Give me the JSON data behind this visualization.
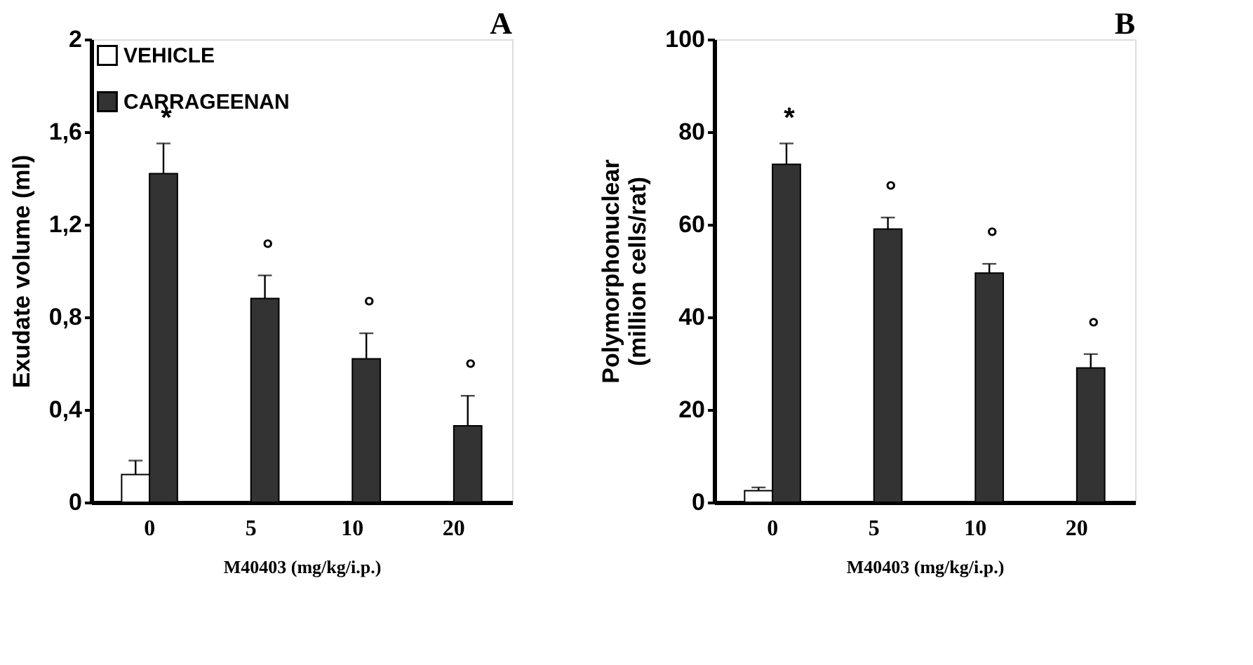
{
  "chart_data": [
    {
      "type": "bar",
      "title": "A",
      "xlabel": "M40403    (mg/kg/i.p.)",
      "ylabel": "Exudate volume (ml)",
      "categories": [
        "0",
        "5",
        "10",
        "20"
      ],
      "series": [
        {
          "name": "VEHICLE",
          "color": "#ffffff",
          "values": [
            0.12,
            null,
            null,
            null
          ],
          "errors": [
            [
              0.12,
              0.18
            ],
            null,
            null,
            null
          ]
        },
        {
          "name": "CARRAGEENAN",
          "color": "#333333",
          "values": [
            1.42,
            0.88,
            0.62,
            0.33
          ],
          "errors": [
            [
              1.42,
              1.55
            ],
            [
              0.88,
              0.98
            ],
            [
              0.62,
              0.73
            ],
            [
              0.33,
              0.46
            ]
          ]
        }
      ],
      "ylim": [
        0,
        2
      ],
      "yticks": [
        0,
        {
          "value": 0.4,
          "label": "0,4"
        },
        {
          "value": 0.8,
          "label": "0,8"
        },
        {
          "value": 1.2,
          "label": "1,2"
        },
        {
          "value": 1.6,
          "label": "1,6"
        },
        2
      ],
      "legend": "top left",
      "grid": false,
      "annotations": [
        "*",
        "°",
        "°",
        "°"
      ]
    },
    {
      "type": "bar",
      "title": "B",
      "xlabel": "M40403    (mg/kg/i.p.)",
      "ylabel": "Polymorphonuclear\n(million cells/rat)",
      "categories": [
        "0",
        "5",
        "10",
        "20"
      ],
      "series": [
        {
          "color": "#ffffff",
          "values": [
            2.5,
            null,
            null,
            null
          ],
          "errors": [
            [
              2.5,
              3.2
            ],
            null,
            null,
            null
          ]
        },
        {
          "color": "#333333",
          "values": [
            73,
            59,
            49.5,
            29
          ],
          "errors": [
            [
              73,
              77.5
            ],
            [
              59,
              61.5
            ],
            [
              49.5,
              51.5
            ],
            [
              29,
              32
            ]
          ]
        }
      ],
      "ylim": [
        0,
        100
      ],
      "yticks": [
        0,
        20,
        40,
        60,
        80,
        100
      ],
      "legend": false,
      "grid": false,
      "annotations": [
        "*",
        "°",
        "°",
        "°"
      ]
    }
  ]
}
